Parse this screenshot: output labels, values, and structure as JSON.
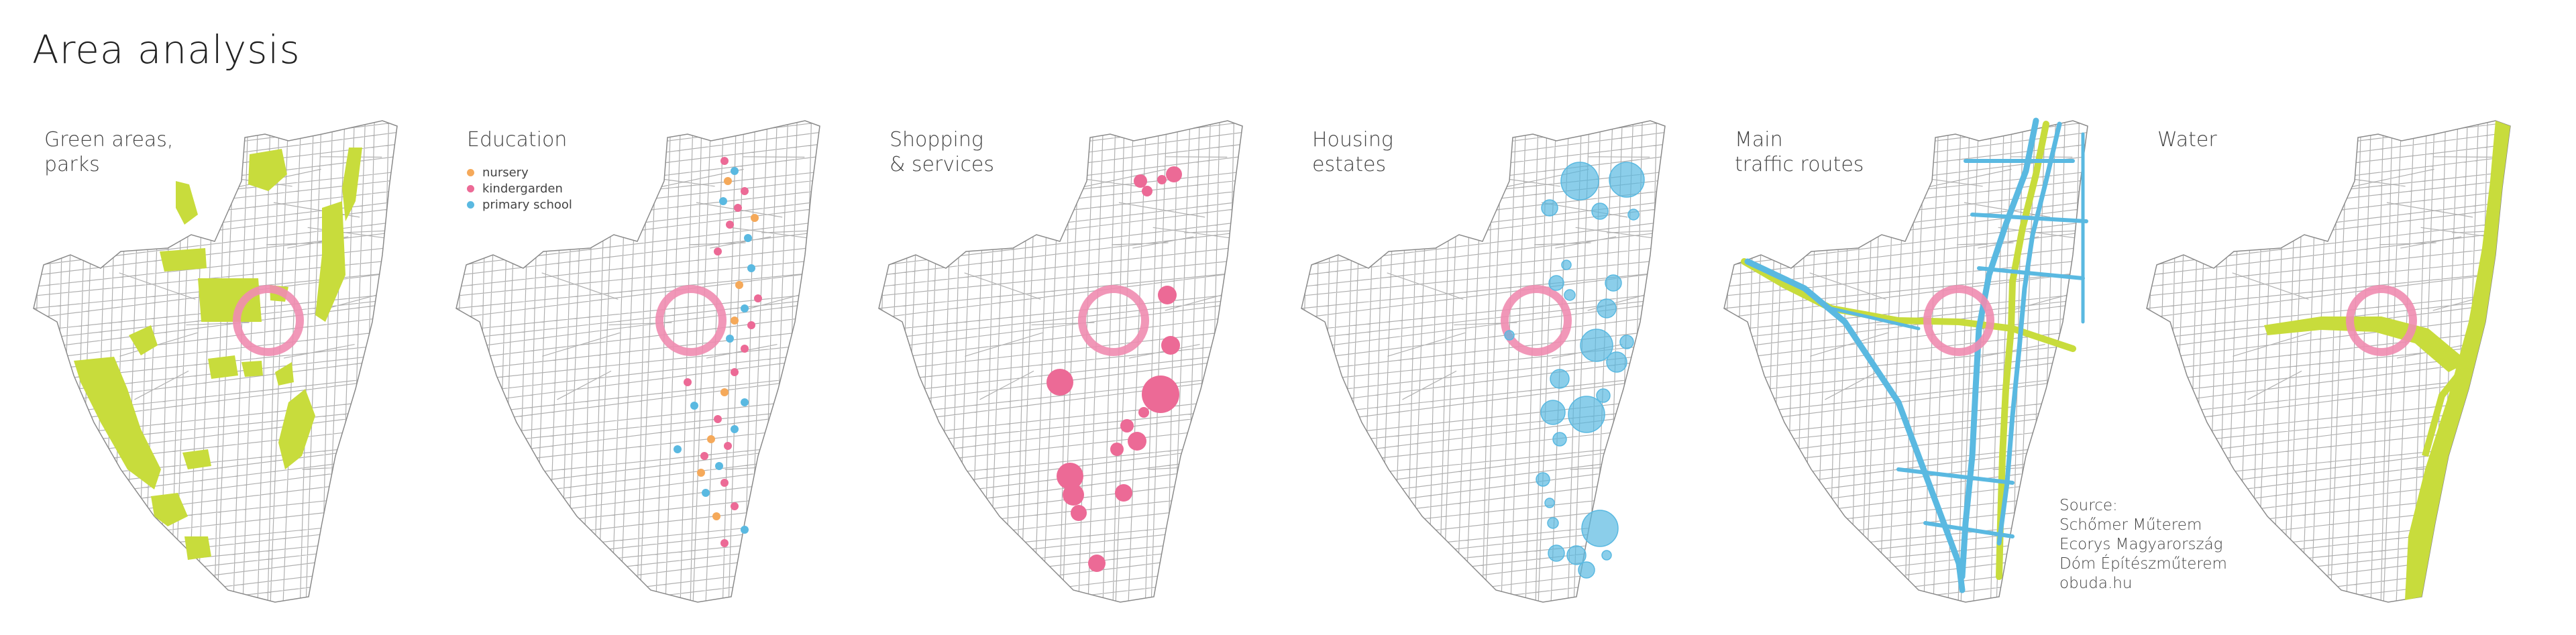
{
  "title": "Area analysis",
  "colors": {
    "green": "#c8dc3c",
    "pink": "#ec6a96",
    "blue": "#5ab9e1",
    "orange": "#f5a95a",
    "street": "#b0b0b0",
    "ring": "#f08cb0"
  },
  "panels": [
    {
      "id": "green",
      "label": "Green areas,\nparks"
    },
    {
      "id": "education",
      "label": "Education"
    },
    {
      "id": "shopping",
      "label": "Shopping\n& services"
    },
    {
      "id": "housing",
      "label": "Housing\nestates"
    },
    {
      "id": "traffic",
      "label": "Main\ntraffic routes"
    },
    {
      "id": "water",
      "label": "Water"
    }
  ],
  "education_legend": [
    {
      "label": "nursery",
      "color": "#f5a95a"
    },
    {
      "label": "kindergarden",
      "color": "#ec6a96"
    },
    {
      "label": "primary school",
      "color": "#5ab9e1"
    }
  ],
  "source": {
    "heading": "Source:",
    "lines": [
      "Schőmer Műterem",
      "Ecorys Magyarország",
      "Dóm Építészműterem",
      "obuda.hu"
    ]
  }
}
